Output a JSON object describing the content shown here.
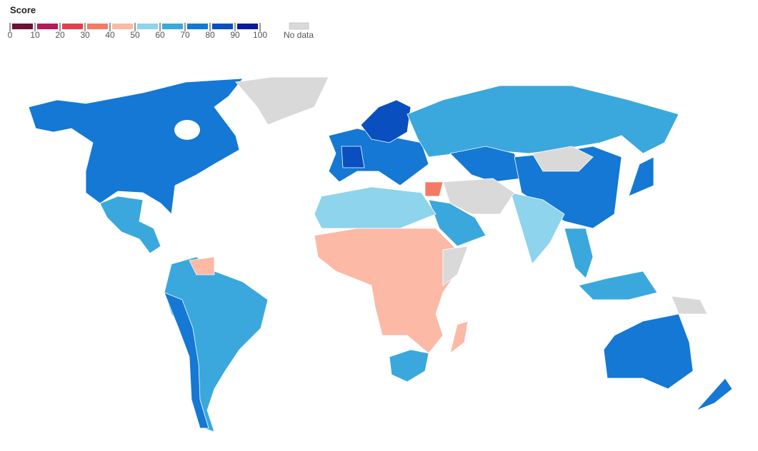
{
  "legend": {
    "title": "Score",
    "ticks": [
      0,
      10,
      20,
      30,
      40,
      50,
      60,
      70,
      80,
      90,
      100
    ],
    "colors": [
      "#6b1236",
      "#b5195a",
      "#e0404a",
      "#f47a63",
      "#fbb9a6",
      "#8dd4ec",
      "#3aa8dc",
      "#1478d4",
      "#0a4fc0",
      "#0a1a9a"
    ],
    "no_data": "No data",
    "no_data_color": "#d9d9d9"
  }
}
